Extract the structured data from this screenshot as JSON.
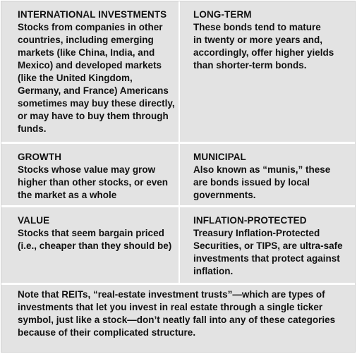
{
  "cells": {
    "international": {
      "title": "INTERNATIONAL INVESTMENTS",
      "lines": [
        "Stocks from companies in other",
        "countries, including emerging",
        "markets (like China, India, and",
        "Mexico) and developed markets",
        "(like the United Kingdom,",
        "Germany, and France) Americans",
        "sometimes may buy these directly,",
        "or may have to buy them through",
        "funds."
      ]
    },
    "long_term": {
      "title": "LONG-TERM",
      "lines": [
        "These bonds tend to mature",
        "in twenty or more years and,",
        "accordingly, offer higher yields",
        "than shorter-term bonds."
      ]
    },
    "growth": {
      "title": "GROWTH",
      "lines": [
        "Stocks whose value may grow",
        "higher than other stocks, or even",
        "the market as a whole"
      ]
    },
    "municipal": {
      "title": "MUNICIPAL",
      "lines": [
        "Also known as “munis,” these",
        "are bonds issued by local",
        "governments."
      ]
    },
    "value": {
      "title": "VALUE",
      "lines": [
        "Stocks that seem bargain priced",
        "(i.e., cheaper than they should be)"
      ]
    },
    "inflation_protected": {
      "title": "INFLATION-PROTECTED",
      "lines": [
        "Treasury Inflation-Protected",
        "Securities, or TIPS, are ultra-safe",
        "investments that protect against",
        "inflation."
      ]
    }
  },
  "note": {
    "lines": [
      "Note that REITs, “real-estate investment trusts”—which are types of",
      "investments that let you invest in real estate through a single ticker",
      "symbol, just like a stock—don’t neatly fall into any of these categories",
      "because of their complicated structure."
    ]
  }
}
